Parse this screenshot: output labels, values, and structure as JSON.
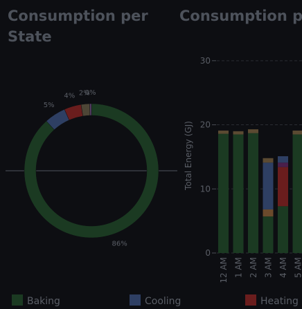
{
  "chart_data": [
    {
      "type": "donut",
      "title": "Consumption per State",
      "categories": [
        "Baking",
        "Cooling",
        "Heating",
        null,
        null
      ],
      "values": [
        86,
        5,
        4,
        2,
        0.4
      ],
      "value_labels": [
        "86%",
        "5%",
        "4%",
        "2%",
        "0%"
      ],
      "colors": [
        "#1b3a22",
        "#2e3f63",
        "#6a1d1d",
        "#4d4636",
        "#5a3f6a"
      ]
    },
    {
      "type": "stacked_bar",
      "title": "Consumption pe",
      "ylabel": "Total Energy (GJ)",
      "categories": [
        "12 AM",
        "1 AM",
        "2 AM",
        "3 AM",
        "4 AM",
        "5 AM"
      ],
      "series": [
        {
          "name": "Baking",
          "color": "#1b3a22",
          "values": [
            18.6,
            18.5,
            18.7,
            5.7,
            7.3,
            18.5
          ]
        },
        {
          "name": null,
          "color": "#6b4a2c",
          "values": [
            0,
            0,
            0,
            1.1,
            0,
            0
          ]
        },
        {
          "name": "Heating",
          "color": "#6a1d1d",
          "values": [
            0,
            0,
            0,
            0,
            6.1,
            0
          ]
        },
        {
          "name": null,
          "color": "#4a1f4a",
          "values": [
            0,
            0,
            0,
            0,
            0.7,
            0
          ]
        },
        {
          "name": "Cooling",
          "color": "#2e3f63",
          "values": [
            0,
            0,
            0,
            7.3,
            1.0,
            0
          ]
        },
        {
          "name": null,
          "color": "#5b4a32",
          "values": [
            0.5,
            0.5,
            0.6,
            0.7,
            0,
            0.6
          ]
        }
      ],
      "ylim": [
        0,
        33
      ],
      "yticks": [
        0,
        10,
        20,
        30
      ],
      "grid": true
    }
  ]
}
